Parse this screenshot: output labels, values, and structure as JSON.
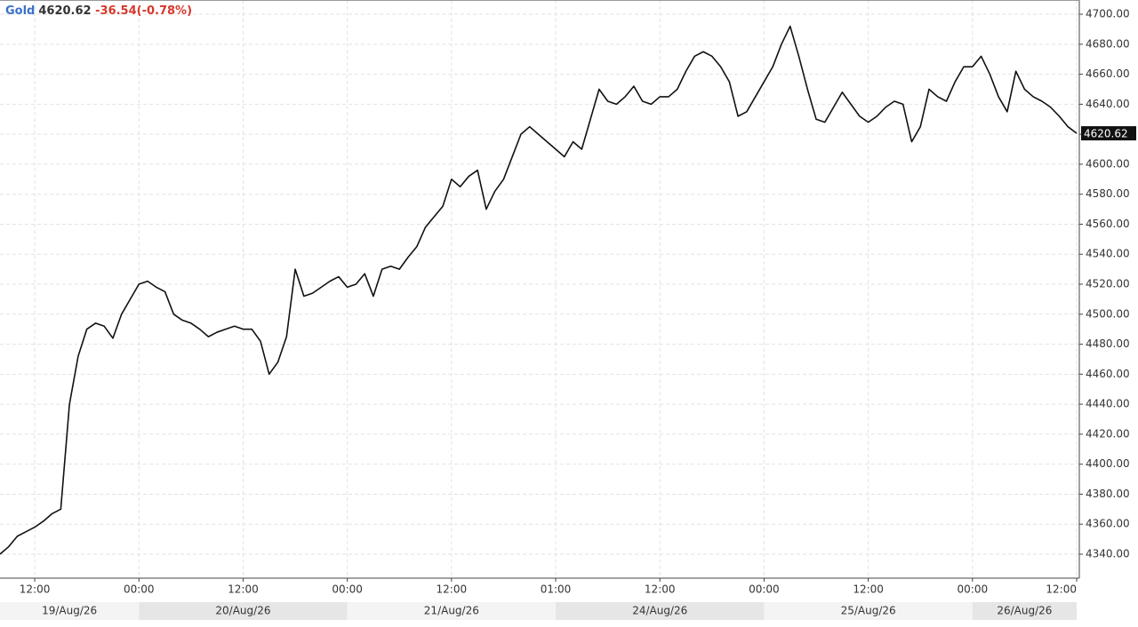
{
  "chart_data": {
    "type": "line",
    "change_text": "-36.54(-0.78%)",
    "last": 4620.62,
    "categories": [
      null,
      null,
      null,
      null,
      "12:00",
      null,
      null,
      null,
      null,
      null,
      null,
      null,
      null,
      null,
      null,
      null,
      "00:00",
      null,
      null,
      null,
      null,
      null,
      null,
      null,
      null,
      null,
      null,
      null,
      "12:00",
      null,
      null,
      null,
      null,
      null,
      null,
      null,
      null,
      null,
      null,
      null,
      "00:00",
      null,
      null,
      null,
      null,
      null,
      null,
      null,
      null,
      null,
      null,
      null,
      "12:00",
      null,
      null,
      null,
      null,
      null,
      null,
      null,
      null,
      null,
      null,
      null,
      "01:00",
      null,
      null,
      null,
      null,
      null,
      null,
      null,
      null,
      null,
      null,
      null,
      "12:00",
      null,
      null,
      null,
      null,
      null,
      null,
      null,
      null,
      null,
      null,
      null,
      "00:00",
      null,
      null,
      null,
      null,
      null,
      null,
      null,
      null,
      null,
      null,
      null,
      "12:00",
      null,
      null,
      null,
      null,
      null,
      null,
      null,
      null,
      null,
      null,
      null,
      "00:00",
      null,
      null,
      null,
      null,
      null,
      null,
      null,
      null,
      null,
      null,
      null,
      "12:00"
    ],
    "date_labels": [
      "19/Aug/26",
      "20/Aug/26",
      "21/Aug/26",
      "24/Aug/26",
      "25/Aug/26",
      "26/Aug/26"
    ],
    "series": [
      {
        "name": "Gold",
        "color": "#111111",
        "values": [
          4340,
          4345,
          4352,
          4355,
          4358,
          4362,
          4367,
          4370,
          4440,
          4472,
          4490,
          4494,
          4492,
          4484,
          4500,
          4510,
          4520,
          4522,
          4518,
          4515,
          4500,
          4496,
          4494,
          4490,
          4485,
          4488,
          4490,
          4492,
          4490,
          4490,
          4482,
          4460,
          4468,
          4485,
          4530,
          4512,
          4514,
          4518,
          4522,
          4525,
          4518,
          4520,
          4527,
          4512,
          4530,
          4532,
          4530,
          4538,
          4545,
          4558,
          4565,
          4572,
          4590,
          4585,
          4592,
          4596,
          4570,
          4582,
          4590,
          4605,
          4620,
          4625,
          4620,
          4615,
          4610,
          4605,
          4615,
          4610,
          4630,
          4650,
          4642,
          4640,
          4645,
          4652,
          4642,
          4640,
          4645,
          4645,
          4650,
          4662,
          4672,
          4675,
          4672,
          4665,
          4655,
          4632,
          4635,
          4645,
          4655,
          4665,
          4680,
          4692,
          4672,
          4650,
          4630,
          4628,
          4638,
          4648,
          4640,
          4632,
          4628,
          4632,
          4638,
          4642,
          4640,
          4615,
          4625,
          4650,
          4645,
          4642,
          4655,
          4665,
          4665,
          4672,
          4660,
          4645,
          4635,
          4662,
          4650,
          4645,
          4642,
          4638,
          4632,
          4625,
          4620.62
        ]
      }
    ],
    "ylim": [
      4324.6,
      4709.5
    ],
    "yticks": [
      {
        "value": 4340,
        "label": "4340.00"
      },
      {
        "value": 4360,
        "label": "4360.00"
      },
      {
        "value": 4380,
        "label": "4380.00"
      },
      {
        "value": 4400,
        "label": "4400.00"
      },
      {
        "value": 4420,
        "label": "4420.00"
      },
      {
        "value": 4440,
        "label": "4440.00"
      },
      {
        "value": 4460,
        "label": "4460.00"
      },
      {
        "value": 4480,
        "label": "4480.00"
      },
      {
        "value": 4500,
        "label": "4500.00"
      },
      {
        "value": 4520,
        "label": "4520.00"
      },
      {
        "value": 4540,
        "label": "4540.00"
      },
      {
        "value": 4560,
        "label": "4560.00"
      },
      {
        "value": 4580,
        "label": "4580.00"
      },
      {
        "value": 4600,
        "label": "4600.00"
      },
      {
        "value": 4620,
        "label": "4620.00"
      },
      {
        "value": 4640,
        "label": "4640.00"
      },
      {
        "value": 4660,
        "label": "4660.00"
      },
      {
        "value": 4680,
        "label": "4680.00"
      },
      {
        "value": 4700,
        "label": "4700.00"
      }
    ],
    "grid": true
  }
}
